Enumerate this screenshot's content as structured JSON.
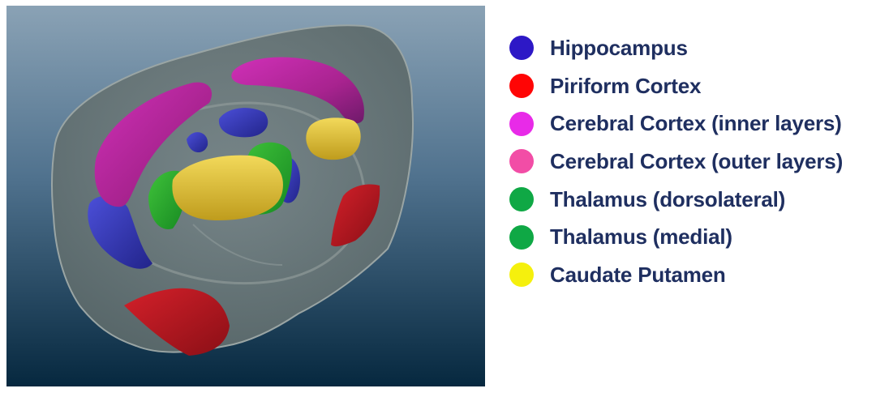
{
  "legend": {
    "items": [
      {
        "label": "Hippocampus",
        "color": "#2d18c6"
      },
      {
        "label": "Piriform Cortex",
        "color": "#ff0505"
      },
      {
        "label": "Cerebral Cortex (inner layers)",
        "color": "#e82ae8"
      },
      {
        "label": "Cerebral Cortex (outer layers)",
        "color": "#f24da6"
      },
      {
        "label": "Thalamus (dorsolateral)",
        "color": "#0fa845"
      },
      {
        "label": "Thalamus (medial)",
        "color": "#0fa845"
      },
      {
        "label": "Caudate Putamen",
        "color": "#f5f00d"
      }
    ]
  }
}
